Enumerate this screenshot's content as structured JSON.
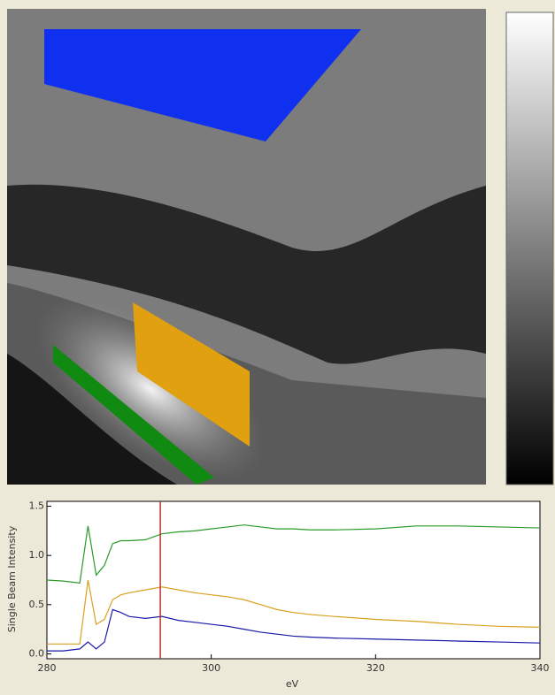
{
  "chart_data": {
    "type": "line",
    "xlabel": "eV",
    "ylabel": "Single Beam Intensity",
    "x": [
      280,
      282,
      284,
      285,
      286,
      287,
      288,
      289,
      290,
      292,
      294,
      296,
      298,
      300,
      302,
      304,
      306,
      308,
      310,
      312,
      315,
      320,
      325,
      330,
      335,
      340
    ],
    "series": [
      {
        "color": "#2a9a2a",
        "values": [
          0.75,
          0.74,
          0.72,
          1.3,
          0.8,
          0.9,
          1.12,
          1.15,
          1.15,
          1.16,
          1.22,
          1.24,
          1.25,
          1.27,
          1.29,
          1.31,
          1.29,
          1.27,
          1.27,
          1.26,
          1.26,
          1.27,
          1.3,
          1.3,
          1.29,
          1.28
        ]
      },
      {
        "color": "#d9a020",
        "values": [
          0.1,
          0.1,
          0.1,
          0.75,
          0.3,
          0.35,
          0.55,
          0.6,
          0.62,
          0.65,
          0.68,
          0.65,
          0.62,
          0.6,
          0.58,
          0.55,
          0.5,
          0.45,
          0.42,
          0.4,
          0.38,
          0.35,
          0.33,
          0.3,
          0.28,
          0.27
        ]
      },
      {
        "color": "#1a1aa8",
        "values": [
          0.03,
          0.03,
          0.05,
          0.12,
          0.05,
          0.12,
          0.45,
          0.42,
          0.38,
          0.36,
          0.38,
          0.34,
          0.32,
          0.3,
          0.28,
          0.25,
          0.22,
          0.2,
          0.18,
          0.17,
          0.16,
          0.15,
          0.14,
          0.13,
          0.12,
          0.11
        ]
      }
    ],
    "marker_x": 293.8,
    "marker_color": "#c03030",
    "xlim": [
      280,
      340
    ],
    "xticks": [
      280,
      300,
      320,
      340
    ],
    "ylim": [
      -0.05,
      1.55
    ],
    "yticks": [
      {
        "value": 0,
        "label": "0.0"
      },
      {
        "value": 0.5,
        "label": "0.5"
      },
      {
        "value": 1,
        "label": "1.0"
      },
      {
        "value": 1.5,
        "label": "1.5"
      }
    ]
  }
}
